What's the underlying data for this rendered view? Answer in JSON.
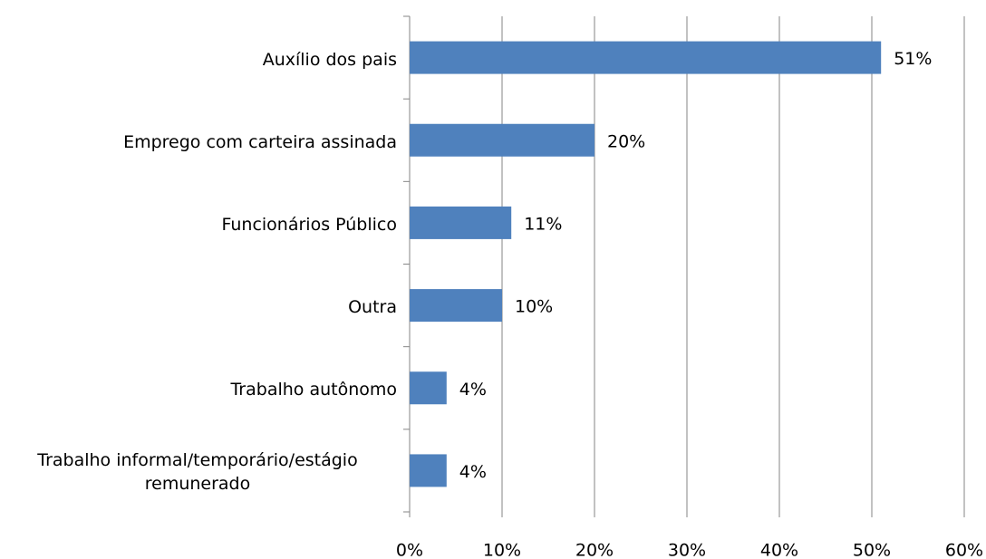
{
  "chart_data": {
    "type": "hbar",
    "categories": [
      "Auxílio dos pais",
      "Emprego com carteira assinada",
      "Funcionários Público",
      "Outra",
      "Trabalho autônomo",
      "Trabalho informal/temporário/estágio remunerado"
    ],
    "values": [
      51,
      20,
      11,
      10,
      4,
      4
    ],
    "value_labels": [
      "51%",
      "20%",
      "11%",
      "10%",
      "4%",
      "4%"
    ],
    "color": "#4f81bd",
    "xlim": [
      0,
      60
    ],
    "xticks": [
      {
        "value": 0,
        "label": "0%"
      },
      {
        "value": 10,
        "label": "10%"
      },
      {
        "value": 20,
        "label": "20%"
      },
      {
        "value": 30,
        "label": "30%"
      },
      {
        "value": 40,
        "label": "40%"
      },
      {
        "value": 50,
        "label": "50%"
      },
      {
        "value": 60,
        "label": "60%"
      }
    ],
    "grid": true
  }
}
